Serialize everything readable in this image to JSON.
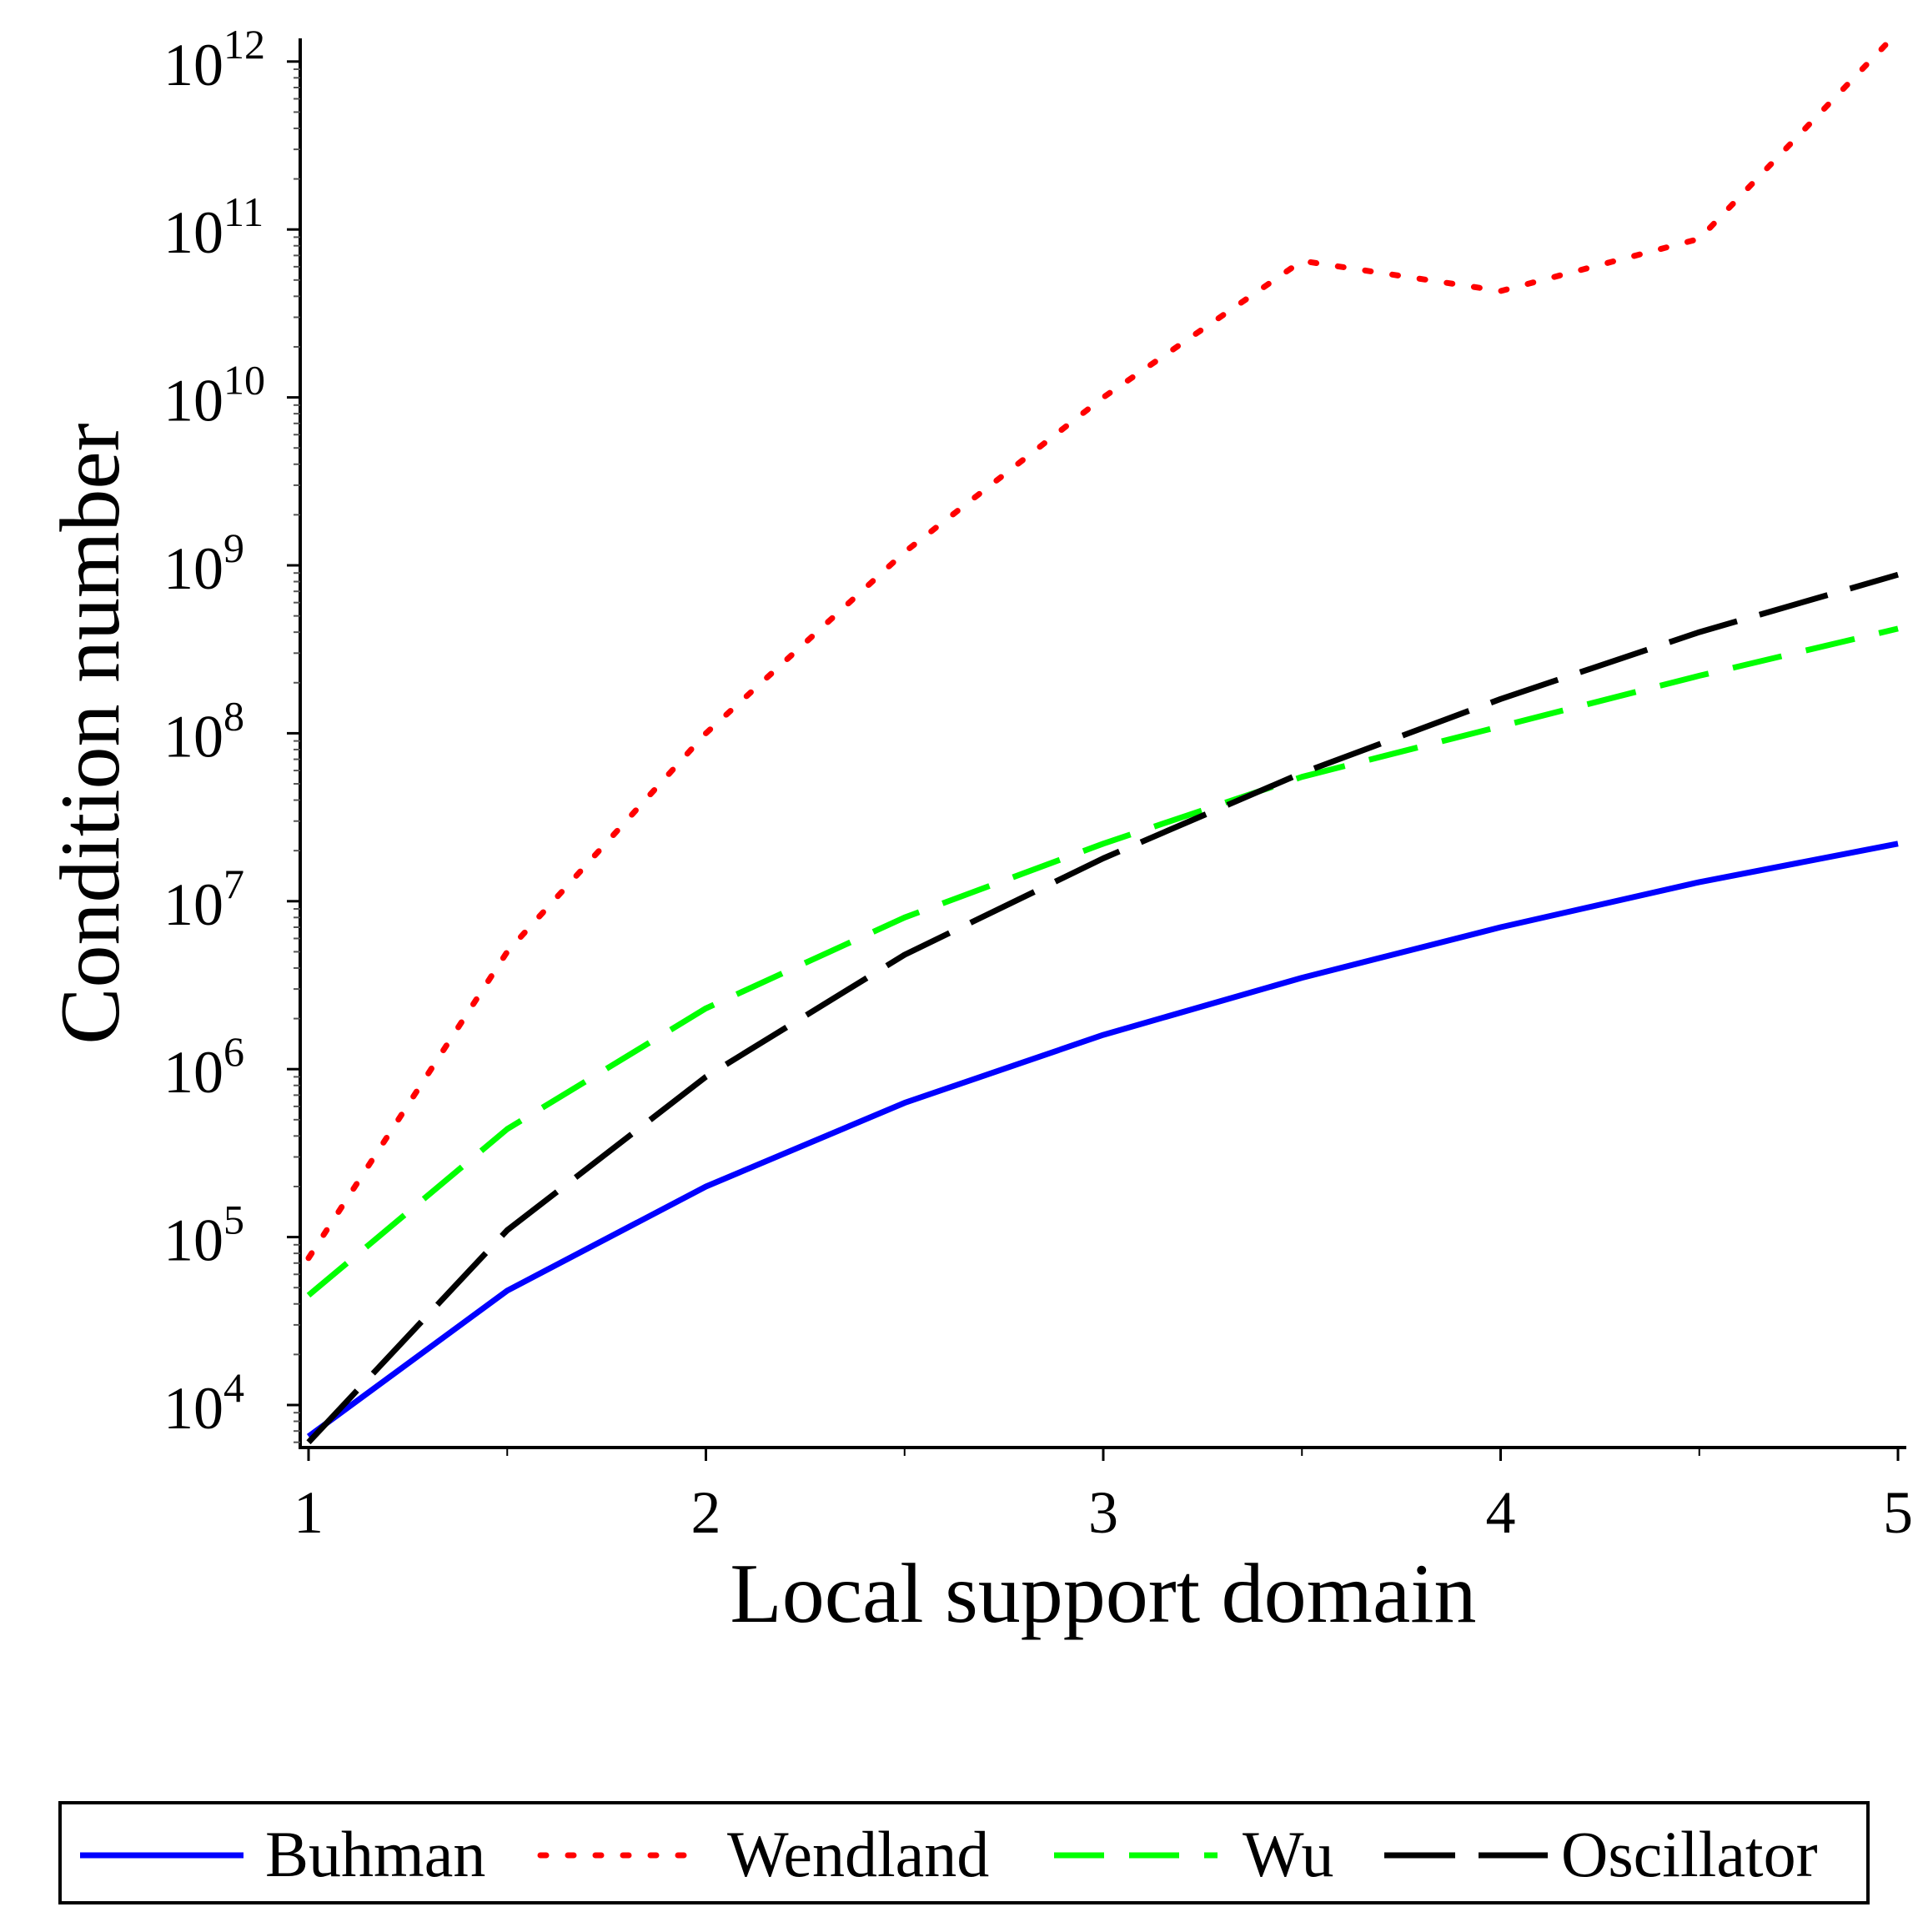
{
  "chart_data": {
    "type": "line",
    "xlabel": "Local support domain",
    "ylabel": "Condition number",
    "xlim": [
      1,
      5
    ],
    "ylim_log10": [
      3.75,
      12.3
    ],
    "yscale": "log",
    "grid": false,
    "legend_position": "bottom",
    "x_ticks": [
      {
        "value": 1,
        "label": "1"
      },
      {
        "value": 2,
        "label": "2"
      },
      {
        "value": 3,
        "label": "3"
      },
      {
        "value": 4,
        "label": "4"
      },
      {
        "value": 5,
        "label": "5"
      }
    ],
    "y_ticks": [
      {
        "exp": 4,
        "base": "10",
        "sup": "4"
      },
      {
        "exp": 5,
        "base": "10",
        "sup": "5"
      },
      {
        "exp": 6,
        "base": "10",
        "sup": "6"
      },
      {
        "exp": 7,
        "base": "10",
        "sup": "7"
      },
      {
        "exp": 8,
        "base": "10",
        "sup": "8"
      },
      {
        "exp": 9,
        "base": "10",
        "sup": "9"
      },
      {
        "exp": 10,
        "base": "10",
        "sup": "10"
      },
      {
        "exp": 11,
        "base": "10",
        "sup": "11"
      },
      {
        "exp": 12,
        "base": "10",
        "sup": "12"
      }
    ],
    "x": [
      1,
      1.5,
      2,
      2.5,
      3,
      3.5,
      4,
      4.5,
      5
    ],
    "series": [
      {
        "name": "Buhman",
        "color": "#0000ff",
        "dash": "solid",
        "values": [
          6500.0,
          48000.0,
          200000.0,
          630000.0,
          1600000.0,
          3500000.0,
          7000000.0,
          13000000.0,
          22000000.0
        ]
      },
      {
        "name": "Wendland",
        "color": "#ff0000",
        "dash": "dot",
        "values": [
          75000.0,
          5000000.0,
          100000000.0,
          1200000000.0,
          10000000000.0,
          65000000000.0,
          43000000000.0,
          88000000000.0,
          1500000000000.0
        ]
      },
      {
        "name": "Wu",
        "color": "#00ff00",
        "dash": "dash",
        "values": [
          45000.0,
          440000.0,
          2300000.0,
          8000000.0,
          22000000.0,
          55000000.0,
          110000000.0,
          220000000.0,
          420000000.0
        ]
      },
      {
        "name": "Oscillator",
        "color": "#000000",
        "dash": "longdash",
        "values": [
          6000.0,
          110000.0,
          900000.0,
          4800000.0,
          18000000.0,
          58000000.0,
          160000000.0,
          400000000.0,
          880000000.0
        ]
      }
    ]
  }
}
